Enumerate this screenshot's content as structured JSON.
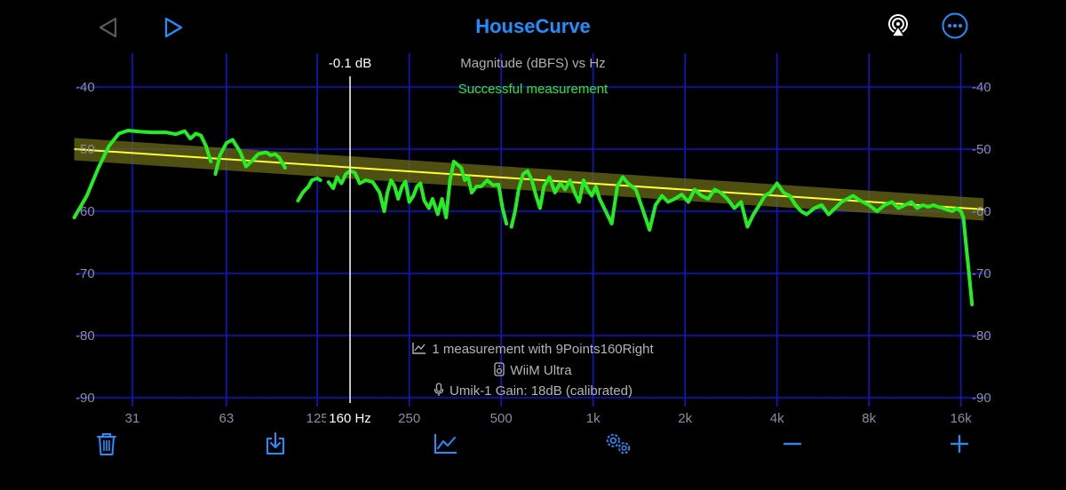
{
  "app": {
    "title": "HouseCurve"
  },
  "icons": {
    "back": "triangle-left-icon",
    "play": "triangle-right-icon",
    "airplay": "airplay-icon",
    "more": "ellipsis-circle-icon",
    "trash": "trash-icon",
    "export": "download-box-icon",
    "graph": "chart-line-icon",
    "settings": "gears-icon",
    "minus": "minus-icon",
    "plus": "plus-icon"
  },
  "colors": {
    "accent": "#1e90ff",
    "grid": "#1414c8",
    "measurement": "#22ee22",
    "target": "#ffff33",
    "band": "#6a6a18",
    "axis_text": "#8c8ca0",
    "status_green": "#22ee22"
  },
  "status": "Successful measurement",
  "cursor": {
    "readout": "-0.1 dB",
    "freq_label": "160 Hz",
    "freq": 160
  },
  "info": {
    "measurements": "1 measurement with 9Points160Right",
    "device": "WiiM Ultra",
    "mic": "Umik-1  Gain: 18dB (calibrated)"
  },
  "chart_data": {
    "type": "line",
    "title": "Magnitude (dBFS) vs Hz",
    "x_scale": "log",
    "xlim": [
      20,
      19000
    ],
    "ylim": [
      -92,
      -36
    ],
    "x_ticks": [
      {
        "value": 31,
        "label": "31"
      },
      {
        "value": 63,
        "label": "63"
      },
      {
        "value": 125,
        "label": "125"
      },
      {
        "value": 250,
        "label": "250"
      },
      {
        "value": 500,
        "label": "500"
      },
      {
        "value": 1000,
        "label": "1k"
      },
      {
        "value": 2000,
        "label": "2k"
      },
      {
        "value": 4000,
        "label": "4k"
      },
      {
        "value": 8000,
        "label": "8k"
      },
      {
        "value": 16000,
        "label": "16k"
      }
    ],
    "y_ticks": [
      -40,
      -50,
      -60,
      -70,
      -80,
      -90
    ],
    "grid": true,
    "target_curve": {
      "x": [
        20,
        19000
      ],
      "y": [
        -50.0,
        -59.7
      ],
      "band_db": 1.8
    },
    "series": [
      {
        "segments": [
          [
            [
              20,
              -61.0
            ],
            [
              22,
              -57.5
            ],
            [
              24,
              -53
            ],
            [
              26,
              -49.5
            ],
            [
              28,
              -47.5
            ],
            [
              30,
              -47.0
            ],
            [
              33,
              -47.2
            ],
            [
              36,
              -47.3
            ],
            [
              40,
              -47.3
            ],
            [
              43,
              -47.6
            ],
            [
              46,
              -47.1
            ],
            [
              48,
              -48.3
            ],
            [
              50,
              -47.5
            ],
            [
              52,
              -47.8
            ],
            [
              54,
              -49.5
            ],
            [
              56,
              -52.0
            ]
          ],
          [
            [
              58,
              -54.0
            ],
            [
              60,
              -51.0
            ],
            [
              63,
              -49.0
            ],
            [
              66,
              -48.5
            ],
            [
              70,
              -50.5
            ],
            [
              73,
              -52.8
            ],
            [
              76,
              -52.0
            ],
            [
              80,
              -50.8
            ],
            [
              85,
              -50.5
            ],
            [
              88,
              -51.0
            ],
            [
              91,
              -50.8
            ],
            [
              94,
              -51.4
            ],
            [
              98,
              -53.0
            ]
          ],
          [
            [
              108,
              -58.3
            ],
            [
              112,
              -57.0
            ],
            [
              117,
              -56.0
            ],
            [
              120,
              -55.0
            ],
            [
              125,
              -54.7
            ],
            [
              128,
              -55.0
            ]
          ],
          [
            [
              136,
              -55.3
            ],
            [
              141,
              -56.3
            ],
            [
              145,
              -54.5
            ],
            [
              150,
              -55.5
            ],
            [
              155,
              -54.0
            ],
            [
              160,
              -53.5
            ],
            [
              166,
              -53.8
            ],
            [
              172,
              -55.5
            ],
            [
              180,
              -55.0
            ],
            [
              190,
              -55.3
            ],
            [
              200,
              -57.0
            ],
            [
              207,
              -60.0
            ],
            [
              212,
              -57.0
            ],
            [
              218,
              -55.0
            ],
            [
              224,
              -56.0
            ],
            [
              230,
              -58.0
            ],
            [
              237,
              -56.0
            ],
            [
              243,
              -55.2
            ],
            [
              250,
              -58.5
            ],
            [
              258,
              -57.5
            ],
            [
              265,
              -56.0
            ],
            [
              272,
              -55.5
            ],
            [
              280,
              -58.3
            ],
            [
              290,
              -59.5
            ],
            [
              298,
              -58.0
            ],
            [
              310,
              -60.5
            ],
            [
              320,
              -58.0
            ],
            [
              330,
              -61.0
            ],
            [
              340,
              -55.0
            ],
            [
              350,
              -52.0
            ],
            [
              360,
              -52.5
            ],
            [
              370,
              -53.0
            ],
            [
              380,
              -55.0
            ],
            [
              390,
              -54.5
            ],
            [
              400,
              -57.0
            ],
            [
              415,
              -56.0
            ],
            [
              430,
              -56.0
            ],
            [
              450,
              -55.0
            ],
            [
              470,
              -55.8
            ],
            [
              490,
              -55.7
            ],
            [
              505,
              -59.5
            ],
            [
              520,
              -62.0
            ]
          ],
          [
            [
              540,
              -62.5
            ],
            [
              555,
              -60.0
            ],
            [
              570,
              -56.5
            ],
            [
              590,
              -54.0
            ],
            [
              610,
              -53.5
            ],
            [
              630,
              -55.0
            ],
            [
              650,
              -57.5
            ],
            [
              670,
              -59.5
            ],
            [
              690,
              -56.0
            ],
            [
              720,
              -54.5
            ],
            [
              750,
              -57.0
            ],
            [
              780,
              -55.5
            ],
            [
              810,
              -56.5
            ],
            [
              840,
              -55.0
            ],
            [
              870,
              -57.0
            ],
            [
              900,
              -58.5
            ],
            [
              930,
              -55.0
            ],
            [
              960,
              -56.5
            ],
            [
              990,
              -57.5
            ],
            [
              1020,
              -56.0
            ],
            [
              1050,
              -58.0
            ],
            [
              1100,
              -60.0
            ],
            [
              1150,
              -62.0
            ],
            [
              1200,
              -56.0
            ],
            [
              1250,
              -54.5
            ],
            [
              1300,
              -55.5
            ],
            [
              1380,
              -56.5
            ],
            [
              1460,
              -60.0
            ],
            [
              1530,
              -63.0
            ],
            [
              1600,
              -59.0
            ],
            [
              1680,
              -57.5
            ],
            [
              1760,
              -58.5
            ],
            [
              1850,
              -58.0
            ],
            [
              1950,
              -57.3
            ],
            [
              2050,
              -58.5
            ],
            [
              2150,
              -56.5
            ],
            [
              2260,
              -57.5
            ],
            [
              2380,
              -58.0
            ],
            [
              2500,
              -56.5
            ],
            [
              2620,
              -57.0
            ],
            [
              2750,
              -58.0
            ],
            [
              2900,
              -59.5
            ],
            [
              3050,
              -58.5
            ],
            [
              3200,
              -62.5
            ],
            [
              3350,
              -60.5
            ],
            [
              3500,
              -59.0
            ],
            [
              3650,
              -57.5
            ],
            [
              3800,
              -57.0
            ],
            [
              4000,
              -55.5
            ],
            [
              4200,
              -57.0
            ],
            [
              4400,
              -57.5
            ],
            [
              4600,
              -59.0
            ],
            [
              4800,
              -60.0
            ],
            [
              5000,
              -60.5
            ],
            [
              5300,
              -59.5
            ],
            [
              5600,
              -59.0
            ],
            [
              5900,
              -60.5
            ],
            [
              6200,
              -59.5
            ],
            [
              6500,
              -58.5
            ],
            [
              6800,
              -58.0
            ],
            [
              7100,
              -57.5
            ],
            [
              7500,
              -58.3
            ],
            [
              8000,
              -59.0
            ],
            [
              8500,
              -60.0
            ],
            [
              9000,
              -59.0
            ],
            [
              9500,
              -58.5
            ],
            [
              10000,
              -59.5
            ],
            [
              10500,
              -59.0
            ],
            [
              11000,
              -58.5
            ],
            [
              11500,
              -59.5
            ],
            [
              12000,
              -59.0
            ],
            [
              12500,
              -59.3
            ],
            [
              13000,
              -59.0
            ],
            [
              13500,
              -59.3
            ],
            [
              14000,
              -59.5
            ],
            [
              14500,
              -59.8
            ],
            [
              15000,
              -60.0
            ],
            [
              15500,
              -59.5
            ],
            [
              16000,
              -60.0
            ],
            [
              16300,
              -61.0
            ],
            [
              16600,
              -65.0
            ],
            [
              17000,
              -70.0
            ],
            [
              17400,
              -75.0
            ]
          ]
        ]
      }
    ]
  }
}
